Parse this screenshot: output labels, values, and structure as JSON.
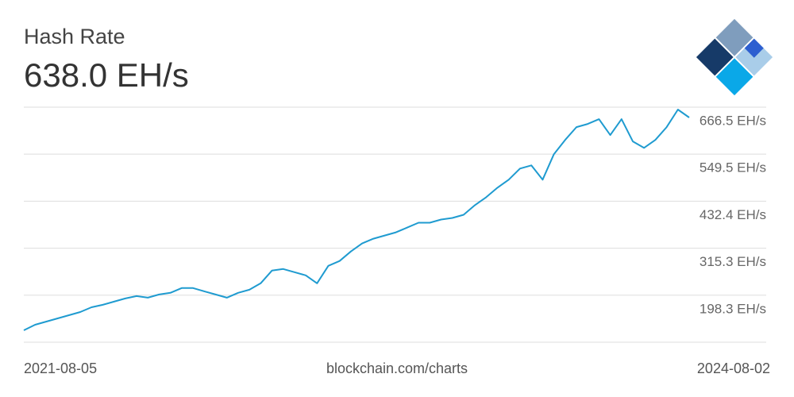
{
  "chart_data": {
    "type": "line",
    "title": "Hash Rate",
    "subtitle": "638.0 EH/s",
    "source": "blockchain.com/charts",
    "color": "#1f9bd0",
    "grid": true,
    "categories": [
      "2021-08-05",
      null,
      null,
      null,
      null,
      null,
      null,
      null,
      null,
      null,
      null,
      null,
      null,
      null,
      null,
      null,
      null,
      null,
      null,
      null,
      null,
      null,
      null,
      null,
      null,
      null,
      null,
      null,
      null,
      null,
      null,
      null,
      null,
      null,
      null,
      null,
      null,
      null,
      null,
      null,
      null,
      null,
      null,
      null,
      null,
      null,
      null,
      null,
      null,
      null,
      null,
      null,
      null,
      null,
      null,
      null,
      null,
      null,
      null,
      "2024-08-02"
    ],
    "values": [
      110.8,
      124.7,
      132.6,
      140.6,
      148.5,
      156.4,
      168.3,
      174.3,
      182.2,
      190.2,
      196.1,
      192.2,
      200.1,
      204.1,
      216.0,
      216.0,
      208.0,
      200.1,
      192.2,
      204.1,
      212.0,
      227.9,
      259.6,
      263.6,
      255.7,
      247.7,
      227.9,
      271.5,
      283.5,
      307.3,
      327.1,
      339.0,
      347.0,
      354.9,
      366.8,
      378.7,
      378.7,
      386.7,
      390.6,
      398.6,
      422.4,
      442.2,
      466.0,
      485.9,
      513.7,
      521.6,
      485.9,
      549.4,
      585.1,
      616.9,
      624.8,
      636.7,
      597.0,
      636.7,
      581.2,
      565.3,
      585.1,
      616.9,
      660.5,
      640.7
    ],
    "ylim": [
      81.2,
      666.5
    ],
    "yticks": [
      {
        "value": 198.3,
        "label": "198.3 EH/s"
      },
      {
        "value": 315.3,
        "label": "315.3 EH/s"
      },
      {
        "value": 432.4,
        "label": "432.4 EH/s"
      },
      {
        "value": 549.5,
        "label": "549.5 EH/s"
      },
      {
        "value": 666.5,
        "label": "666.5 EH/s"
      }
    ]
  }
}
